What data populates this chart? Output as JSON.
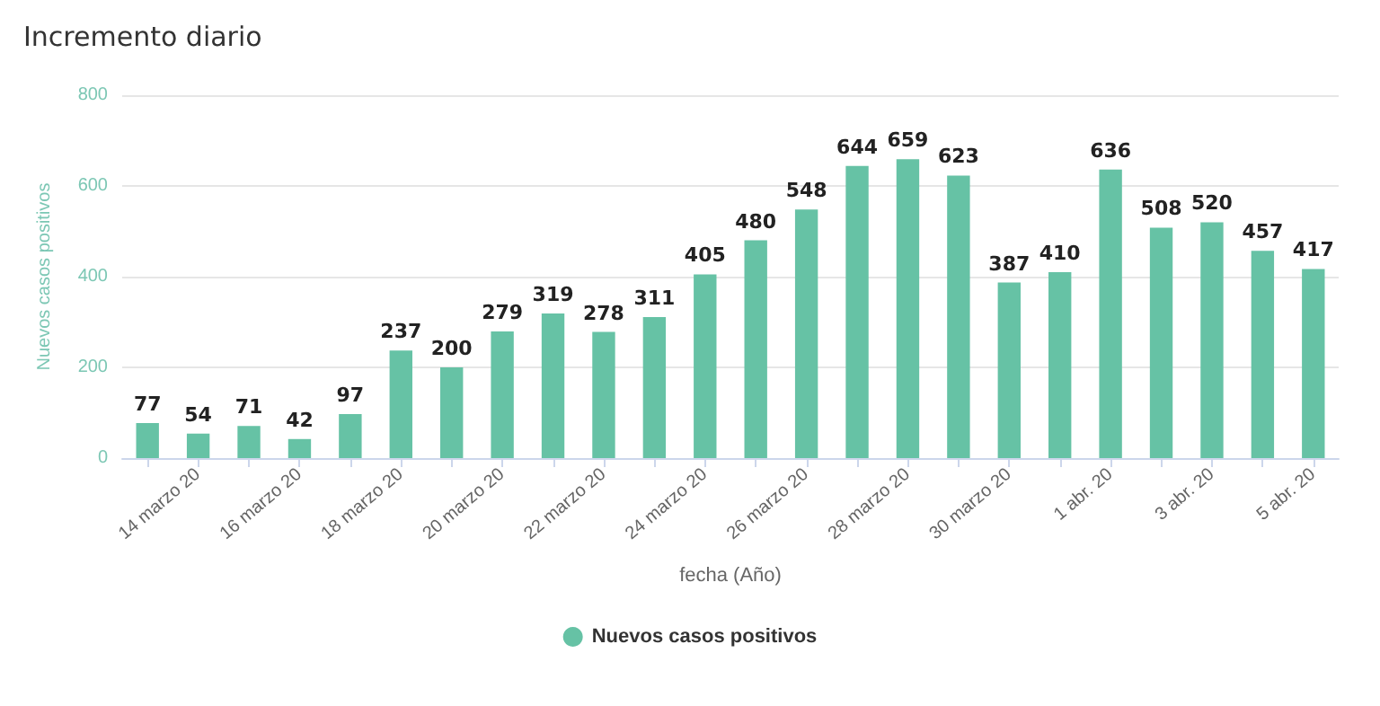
{
  "chart_data": {
    "type": "bar",
    "title": "Incremento diario",
    "xlabel": "fecha (Año)",
    "ylabel": "Nuevos casos positivos",
    "categories": [
      null,
      "14 marzo 20",
      null,
      "16 marzo 20",
      null,
      "18 marzo 20",
      null,
      "20 marzo 20",
      null,
      "22 marzo 20",
      null,
      "24 marzo 20",
      null,
      "26 marzo 20",
      null,
      "28 marzo 20",
      null,
      "30 marzo 20",
      null,
      "1 abr. 20",
      null,
      "3 abr. 20",
      null,
      "5 abr. 20"
    ],
    "series": [
      {
        "name": "Nuevos casos positivos",
        "color": "#66c2a5",
        "values": [
          77,
          54,
          71,
          42,
          97,
          237,
          200,
          279,
          319,
          278,
          311,
          405,
          480,
          548,
          644,
          659,
          623,
          387,
          410,
          636,
          508,
          520,
          457,
          417
        ]
      }
    ],
    "ylim": [
      0,
      800
    ],
    "yticks": [
      0,
      200,
      400,
      600,
      800
    ],
    "grid": "y",
    "legend": "bottom",
    "data_labels": true
  }
}
